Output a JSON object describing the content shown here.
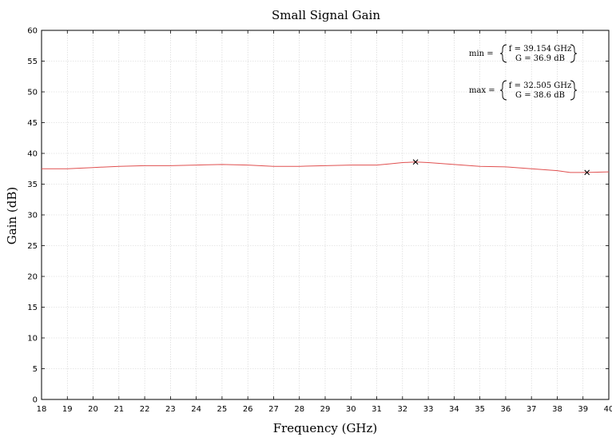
{
  "chart_data": {
    "type": "line",
    "title": "Small Signal Gain",
    "xlabel": "Frequency (GHz)",
    "ylabel": "Gain (dB)",
    "xlim": [
      18,
      40
    ],
    "ylim": [
      0,
      60
    ],
    "xticks": [
      18,
      19,
      20,
      21,
      22,
      23,
      24,
      25,
      26,
      27,
      28,
      29,
      30,
      31,
      32,
      33,
      34,
      35,
      36,
      37,
      38,
      39,
      40
    ],
    "yticks": [
      0,
      5,
      10,
      15,
      20,
      25,
      30,
      35,
      40,
      45,
      50,
      55,
      60
    ],
    "grid": true,
    "line_color": "#e05050",
    "series": [
      {
        "x": [
          18,
          19,
          20,
          21,
          22,
          23,
          24,
          25,
          26,
          27,
          28,
          29,
          30,
          31,
          31.5,
          32,
          32.505,
          33,
          34,
          35,
          36,
          37,
          38,
          38.5,
          39.154,
          40
        ],
        "y": [
          37.5,
          37.5,
          37.7,
          37.9,
          38.0,
          38.0,
          38.1,
          38.2,
          38.1,
          37.9,
          37.9,
          38.0,
          38.1,
          38.1,
          38.3,
          38.5,
          38.6,
          38.5,
          38.2,
          37.9,
          37.8,
          37.5,
          37.2,
          36.9,
          36.9,
          37.0
        ]
      }
    ],
    "markers": [
      {
        "x": 32.505,
        "y": 38.6
      },
      {
        "x": 39.154,
        "y": 36.9
      }
    ],
    "annotations": {
      "min": {
        "label": "min =",
        "f": "f = 39.154 GHz",
        "g": "G = 36.9 dB"
      },
      "max": {
        "label": "max =",
        "f": "f = 32.505 GHz",
        "g": "G = 38.6 dB"
      }
    }
  }
}
